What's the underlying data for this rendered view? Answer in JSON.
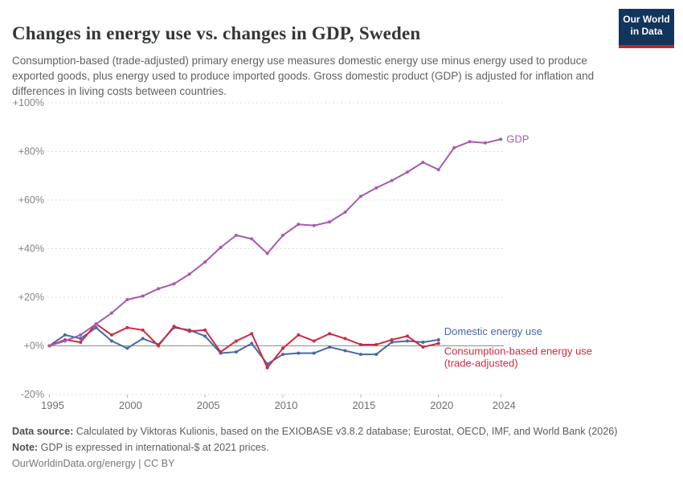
{
  "header": {
    "title": "Changes in energy use vs. changes in GDP, Sweden",
    "subtitle": "Consumption-based (trade-adjusted) primary energy use measures domestic energy use minus energy used to produce exported goods, plus energy used to produce imported goods. Gross domestic product (GDP) is adjusted for inflation and differences in living costs between countries.",
    "logo": {
      "line1": "Our World",
      "line2": "in Data",
      "bg_color": "#12355B",
      "bar_color": "#C5262B"
    }
  },
  "footer": {
    "source_label": "Data source:",
    "source_text": " Calculated by Viktoras Kulionis, based on the EXIOBASE v3.8.2 database; Eurostat, OECD, IMF, and World Bank (2026)",
    "note_label": "Note:",
    "note_text": " GDP is expressed in international-$ at 2021 prices.",
    "license": "OurWorldinData.org/energy | CC BY"
  },
  "chart_data": {
    "type": "line",
    "title": "Changes in energy use vs. changes in GDP, Sweden",
    "xlabel": "",
    "ylabel": "",
    "xlim": [
      1995,
      2024
    ],
    "ylim": [
      -20,
      100
    ],
    "grid": "horizontal-dashed",
    "legend_position": "end-of-line",
    "yticks": [
      {
        "label": "+100%",
        "value": 100
      },
      {
        "label": "+80%",
        "value": 80
      },
      {
        "label": "+60%",
        "value": 60
      },
      {
        "label": "+40%",
        "value": 40
      },
      {
        "label": "+20%",
        "value": 20
      },
      {
        "label": "+0%",
        "value": 0
      },
      {
        "label": "-20%",
        "value": -20
      }
    ],
    "xticks": [
      {
        "label": "1995",
        "value": 1995
      },
      {
        "label": "2000",
        "value": 2000
      },
      {
        "label": "2005",
        "value": 2005
      },
      {
        "label": "2010",
        "value": 2010
      },
      {
        "label": "2015",
        "value": 2015
      },
      {
        "label": "2020",
        "value": 2020
      },
      {
        "label": "2024",
        "value": 2024
      }
    ],
    "series": [
      {
        "name": "Domestic energy use",
        "color": "#4669A5",
        "x_start": 1995,
        "values": [
          0,
          4.5,
          3,
          7.5,
          2,
          -1,
          3,
          0.5,
          7.5,
          6.5,
          4,
          -3,
          -2.5,
          1,
          -7.5,
          -3.5,
          -3,
          -3,
          -0.5,
          -2,
          -3.5,
          -3.5,
          1.5,
          2,
          1.5,
          2.5
        ],
        "end_label_lines": [
          "Domestic energy use"
        ],
        "end_label_dy": -6
      },
      {
        "name": "Consumption-based energy use (trade-adjusted)",
        "color": "#CE2A41",
        "x_start": 1995,
        "values": [
          0,
          2.5,
          1.5,
          9,
          4.5,
          7.5,
          6.5,
          0,
          8,
          6,
          6.5,
          -2.5,
          2,
          5,
          -9,
          -1,
          4.5,
          2,
          5,
          3,
          0.5,
          0.5,
          2.5,
          4,
          -0.5,
          1
        ],
        "end_label_lines": [
          "Consumption-based energy use",
          "(trade-adjusted)"
        ],
        "end_label_dy": 14
      },
      {
        "name": "GDP",
        "color": "#A55BAD",
        "x_start": 1995,
        "values": [
          0,
          2,
          4.5,
          9,
          13.5,
          19,
          20.5,
          23.5,
          25.5,
          29.5,
          34.5,
          40.5,
          45.5,
          44,
          38,
          45.5,
          50,
          49.5,
          51,
          55,
          61.5,
          65,
          68,
          71.5,
          75.5,
          72.5,
          81.5,
          84,
          83.5,
          85
        ],
        "end_label_lines": [
          "GDP"
        ],
        "end_label_dy": 4
      }
    ]
  }
}
